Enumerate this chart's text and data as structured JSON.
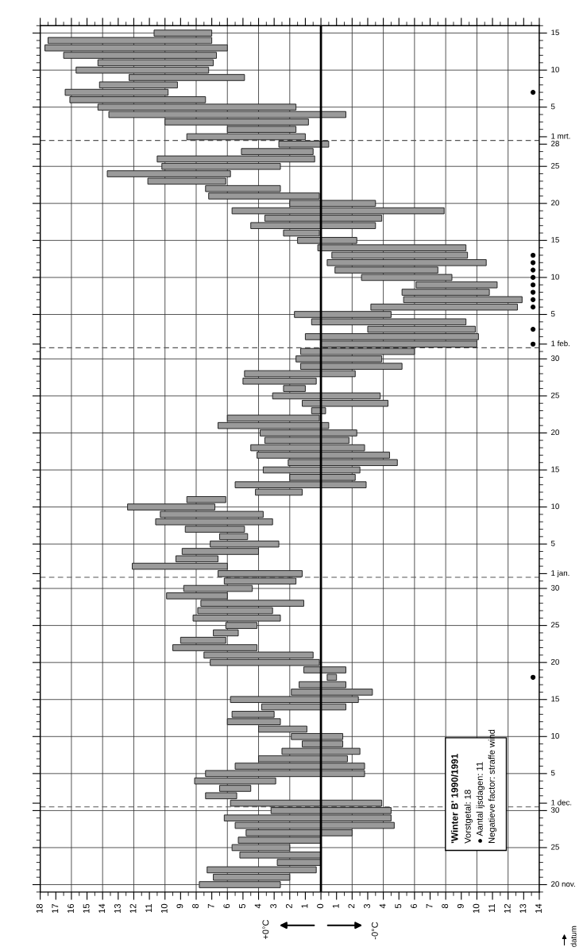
{
  "chart_data": {
    "type": "bar",
    "orientation": "horizontal",
    "x": [
      "1990-11-20",
      "1990-11-21",
      "1990-11-22",
      "1990-11-23",
      "1990-11-24",
      "1990-11-25",
      "1990-11-26",
      "1990-11-27",
      "1990-11-28",
      "1990-11-29",
      "1990-11-30",
      "1990-12-01",
      "1990-12-02",
      "1990-12-03",
      "1990-12-04",
      "1990-12-05",
      "1990-12-06",
      "1990-12-07",
      "1990-12-08",
      "1990-12-09",
      "1990-12-10",
      "1990-12-11",
      "1990-12-12",
      "1990-12-13",
      "1990-12-14",
      "1990-12-15",
      "1990-12-16",
      "1990-12-17",
      "1990-12-18",
      "1990-12-19",
      "1990-12-20",
      "1990-12-21",
      "1990-12-22",
      "1990-12-23",
      "1990-12-24",
      "1990-12-25",
      "1990-12-26",
      "1990-12-27",
      "1990-12-28",
      "1990-12-29",
      "1990-12-30",
      "1990-12-31",
      "1991-01-01",
      "1991-01-02",
      "1991-01-03",
      "1991-01-04",
      "1991-01-05",
      "1991-01-06",
      "1991-01-07",
      "1991-01-08",
      "1991-01-09",
      "1991-01-10",
      "1991-01-11",
      "1991-01-12",
      "1991-01-13",
      "1991-01-14",
      "1991-01-15",
      "1991-01-16",
      "1991-01-17",
      "1991-01-18",
      "1991-01-19",
      "1991-01-20",
      "1991-01-21",
      "1991-01-22",
      "1991-01-23",
      "1991-01-24",
      "1991-01-25",
      "1991-01-26",
      "1991-01-27",
      "1991-01-28",
      "1991-01-29",
      "1991-01-30",
      "1991-01-31",
      "1991-02-01",
      "1991-02-02",
      "1991-02-03",
      "1991-02-04",
      "1991-02-05",
      "1991-02-06",
      "1991-02-07",
      "1991-02-08",
      "1991-02-09",
      "1991-02-10",
      "1991-02-11",
      "1991-02-12",
      "1991-02-13",
      "1991-02-14",
      "1991-02-15",
      "1991-02-16",
      "1991-02-17",
      "1991-02-18",
      "1991-02-19",
      "1991-02-20",
      "1991-02-21",
      "1991-02-22",
      "1991-02-23",
      "1991-02-24",
      "1991-02-25",
      "1991-02-26",
      "1991-02-27",
      "1991-02-28",
      "1991-03-01",
      "1991-03-02",
      "1991-03-03",
      "1991-03-04",
      "1991-03-05",
      "1991-03-06",
      "1991-03-07",
      "1991-03-08",
      "1991-03-09",
      "1991-03-10",
      "1991-03-11",
      "1991-03-12",
      "1991-03-13",
      "1991-03-14",
      "1991-03-15"
    ],
    "series": [
      {
        "color": "#9a9a9a",
        "base": [
          2.6,
          2.0,
          0.3,
          0.0,
          0.0,
          2.0,
          0.0,
          -2.0,
          -4.7,
          -4.5,
          -4.5,
          -3.9,
          5.4,
          4.5,
          2.9,
          -2.8,
          -2.8,
          -1.7,
          -2.5,
          -1.4,
          -1.4,
          0.9,
          2.6,
          3.0,
          -1.6,
          -2.4,
          -3.3,
          -1.6,
          -1.0,
          -1.6,
          0.1,
          0.5,
          4.1,
          6.1,
          5.3,
          4.1,
          2.6,
          3.1,
          1.1,
          6.0,
          4.4,
          1.6,
          1.2,
          6.0,
          6.6,
          4.0,
          2.7,
          4.7,
          4.9,
          3.1,
          3.7,
          6.8,
          6.1,
          1.2,
          -2.9,
          -2.2,
          -2.5,
          -4.9,
          -4.4,
          -2.8,
          -1.8,
          -2.3,
          -0.5,
          0.1,
          -0.3,
          -4.3,
          -3.8,
          1.0,
          0.3,
          -2.2,
          -5.2,
          -3.9,
          -6.0,
          -10.0,
          -10.1,
          -9.9,
          -9.3,
          -4.5,
          -12.6,
          -12.9,
          -10.8,
          -11.3,
          -8.4,
          -7.5,
          -10.6,
          -9.4,
          -9.3,
          -2.3,
          0.1,
          -3.5,
          -3.9,
          -7.9,
          -3.5,
          0.1,
          2.6,
          6.1,
          5.8,
          2.6,
          0.4,
          0.5,
          -0.5,
          1.0,
          1.6,
          0.8,
          -1.6,
          1.6,
          7.4,
          9.8,
          9.2,
          4.9,
          7.2,
          6.9,
          6.7,
          6.0,
          7.0,
          7.0
        ],
        "values": [
          5.2,
          4.9,
          7.0,
          2.8,
          5.2,
          3.7,
          5.3,
          6.8,
          10.2,
          10.7,
          7.7,
          9.7,
          2.0,
          2.0,
          5.2,
          10.2,
          8.3,
          5.7,
          5.0,
          2.6,
          3.3,
          3.1,
          3.4,
          2.7,
          5.4,
          8.2,
          5.2,
          3.0,
          0.6,
          2.7,
          7.0,
          7.0,
          5.4,
          2.9,
          1.6,
          2.0,
          5.6,
          4.8,
          6.6,
          3.9,
          4.4,
          4.6,
          5.4,
          6.1,
          2.7,
          4.9,
          4.4,
          1.8,
          3.8,
          7.5,
          6.6,
          5.6,
          2.5,
          3.0,
          8.4,
          4.2,
          6.2,
          7.0,
          8.5,
          7.3,
          5.4,
          6.2,
          7.1,
          5.9,
          0.9,
          5.5,
          6.9,
          1.4,
          4.7,
          7.1,
          6.5,
          5.5,
          7.3,
          10.0,
          11.1,
          6.9,
          9.9,
          6.2,
          9.4,
          7.6,
          5.6,
          5.2,
          5.8,
          6.6,
          10.2,
          8.7,
          9.5,
          3.8,
          2.3,
          8.0,
          7.5,
          13.6,
          5.5,
          7.1,
          4.8,
          5.0,
          7.9,
          7.6,
          10.1,
          4.6,
          3.2,
          7.6,
          4.4,
          9.2,
          15.2,
          12.7,
          8.7,
          6.6,
          5.0,
          7.4,
          8.5,
          7.4,
          9.8,
          11.7,
          10.5,
          3.7
        ]
      },
      {
        "type": "scatter",
        "color": "#000000",
        "marker": "circle",
        "x": [
          "1990-12-18",
          "1991-02-01",
          "1991-02-03",
          "1991-02-06",
          "1991-02-07",
          "1991-02-08",
          "1991-02-09",
          "1991-02-10",
          "1991-02-11",
          "1991-02-12",
          "1991-02-13",
          "1991-03-07"
        ],
        "values": [
          -13.6,
          -13.6,
          -13.6,
          -13.6,
          -13.6,
          -13.6,
          -13.6,
          -13.6,
          -13.6,
          -13.6,
          -13.6,
          -13.6
        ]
      }
    ],
    "xlim": [
      18,
      -14
    ],
    "xticks": [
      18,
      17,
      16,
      15,
      14,
      13,
      12,
      11,
      10,
      9,
      8,
      7,
      6,
      5,
      4,
      3,
      2,
      1,
      0,
      {
        "value": -1,
        "label": "1"
      },
      {
        "value": -2,
        "label": "2"
      },
      {
        "value": -3,
        "label": "3"
      },
      {
        "value": -4,
        "label": "4"
      },
      {
        "value": -5,
        "label": "5"
      },
      {
        "value": -6,
        "label": "6"
      },
      {
        "value": -7,
        "label": "7"
      },
      {
        "value": -8,
        "label": "8"
      },
      {
        "value": -9,
        "label": "9"
      },
      {
        "value": -10,
        "label": "10"
      },
      {
        "value": -11,
        "label": "11"
      },
      {
        "value": -12,
        "label": "12"
      },
      {
        "value": -13,
        "label": "13"
      },
      {
        "value": -14,
        "label": "14"
      }
    ],
    "ylim": [
      "1990-11-19",
      "1991-03-16"
    ],
    "yticks": [
      {
        "value": "1990-11-20",
        "label": "20 nov."
      },
      {
        "value": "1990-11-25",
        "label": "25"
      },
      {
        "value": "1990-11-30",
        "label": "30"
      },
      {
        "value": "1990-12-01",
        "label": "1 dec."
      },
      {
        "value": "1990-12-05",
        "label": "5"
      },
      {
        "value": "1990-12-10",
        "label": "10"
      },
      {
        "value": "1990-12-15",
        "label": "15"
      },
      {
        "value": "1990-12-20",
        "label": "20"
      },
      {
        "value": "1990-12-25",
        "label": "25"
      },
      {
        "value": "1990-12-30",
        "label": "30"
      },
      {
        "value": "1991-01-01",
        "label": "1 jan."
      },
      {
        "value": "1991-01-05",
        "label": "5"
      },
      {
        "value": "1991-01-10",
        "label": "10"
      },
      {
        "value": "1991-01-15",
        "label": "15"
      },
      {
        "value": "1991-01-20",
        "label": "20"
      },
      {
        "value": "1991-01-25",
        "label": "25"
      },
      {
        "value": "1991-01-30",
        "label": "30"
      },
      {
        "value": "1991-02-01",
        "label": "1 feb."
      },
      {
        "value": "1991-02-05",
        "label": "5"
      },
      {
        "value": "1991-02-10",
        "label": "10"
      },
      {
        "value": "1991-02-15",
        "label": "15"
      },
      {
        "value": "1991-02-20",
        "label": "20"
      },
      {
        "value": "1991-02-25",
        "label": "25"
      },
      {
        "value": "1991-02-28",
        "label": "28"
      },
      {
        "value": "1991-03-01",
        "label": "1 mrt."
      },
      {
        "value": "1991-03-05",
        "label": "5"
      },
      {
        "value": "1991-03-10",
        "label": "10"
      },
      {
        "value": "1991-03-15",
        "label": "15"
      }
    ],
    "grid": true,
    "ref_lines": [
      {
        "axis": "x",
        "value": 0,
        "color": "#000000",
        "line_style": "solid"
      },
      {
        "axis": "y",
        "value": "1990-11-30T12:00",
        "color": "#555555",
        "line_style": "dashed"
      },
      {
        "axis": "y",
        "value": "1990-12-31T12:00",
        "color": "#555555",
        "line_style": "dashed"
      },
      {
        "axis": "y",
        "value": "1991-01-31T12:00",
        "color": "#555555",
        "line_style": "dashed"
      },
      {
        "axis": "y",
        "value": "1991-02-28T12:00",
        "color": "#555555",
        "line_style": "dashed"
      }
    ],
    "annotations": [
      "'Winter B' 1990/1991",
      "Vorstgetal: 18",
      "● Aantal ijsdagen: 11",
      "Negatieve factor: straffe wind",
      "+0°C",
      "-0°C",
      "datum"
    ]
  }
}
